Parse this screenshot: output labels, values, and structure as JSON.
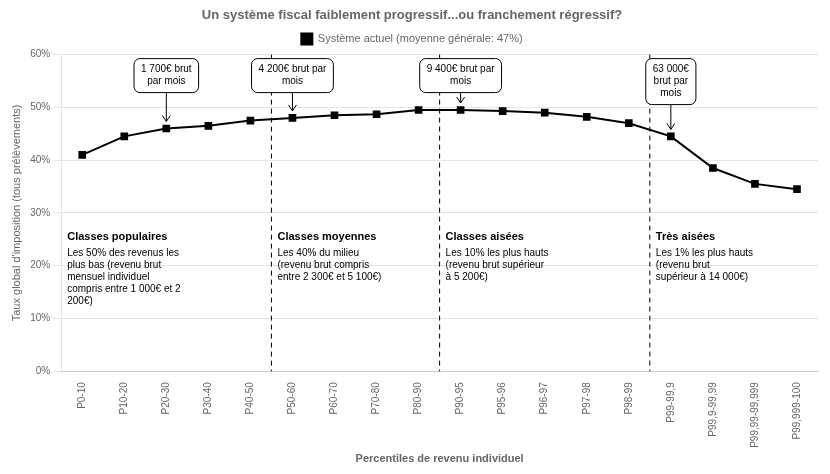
{
  "chart_data": {
    "type": "line",
    "title": "Un système fiscal faiblement progressif...ou franchement régressif?",
    "x_label": "Percentiles de revenu individuel",
    "y_label": "Taux global d'imposition (tous prélèvements)",
    "categories": [
      "P0-10",
      "P10-20",
      "P20-30",
      "P30-40",
      "P40-50",
      "P50-60",
      "P60-70",
      "P70-80",
      "P80-90",
      "P90-95",
      "P95-96",
      "P96-97",
      "P97-98",
      "P98-99",
      "P99-99,9",
      "P99,9-99,99",
      "P99,99-99,999",
      "P99,999-100"
    ],
    "series": [
      {
        "name": "Système actuel (moyenne générale: 47%)",
        "color": "#000000",
        "marker": "square",
        "values": [
          41.0,
          44.5,
          46.0,
          46.5,
          47.5,
          48.0,
          48.5,
          48.7,
          49.5,
          49.5,
          49.3,
          49.0,
          48.2,
          47.0,
          44.5,
          38.5,
          35.5,
          34.5
        ]
      }
    ],
    "ylim": [
      0,
      60
    ],
    "yticks": [
      {
        "value": 0,
        "label": "0%"
      },
      {
        "value": 10,
        "label": "10%"
      },
      {
        "value": 20,
        "label": "20%"
      },
      {
        "value": 30,
        "label": "30%"
      },
      {
        "value": 40,
        "label": "40%"
      },
      {
        "value": 50,
        "label": "50%"
      },
      {
        "value": 60,
        "label": "60%"
      }
    ],
    "grid": "y",
    "annotations": [
      {
        "text": "1 700€ brut\npar mois",
        "category": "P20-30"
      },
      {
        "text": "4 200€ brut par\nmois",
        "category": "P50-60"
      },
      {
        "text": "9 400€ brut par\nmois",
        "category": "P90-95"
      },
      {
        "text": "63 000€\nbrut par\nmois",
        "category": "P99-99,9"
      }
    ],
    "sections": [
      {
        "title": "Classes populaires",
        "text": "Les 50% des revenus les\nplus bas (revenu brut\nmensuel individuel\ncompris entre 1 000€ et 2\n200€)",
        "from": "P0-10",
        "to": "P40-50"
      },
      {
        "title": "Classes moyennes",
        "text": "Les 40% du milieu\n(revenu brut compris\nentre 2 300€ et 5 100€)",
        "from": "P50-60",
        "to": "P80-90"
      },
      {
        "title": "Classes aisées",
        "text": "Les 10% les plus hauts\n(revenu brut supérieur\nà 5 200€)",
        "from": "P90-95",
        "to": "P98-99"
      },
      {
        "title": "Très aisées",
        "text": "Les 1% les plus hauts\n(revenu brut\nsupérieur à 14 000€)",
        "from": "P99-99,9",
        "to": "P99,999-100"
      }
    ]
  }
}
